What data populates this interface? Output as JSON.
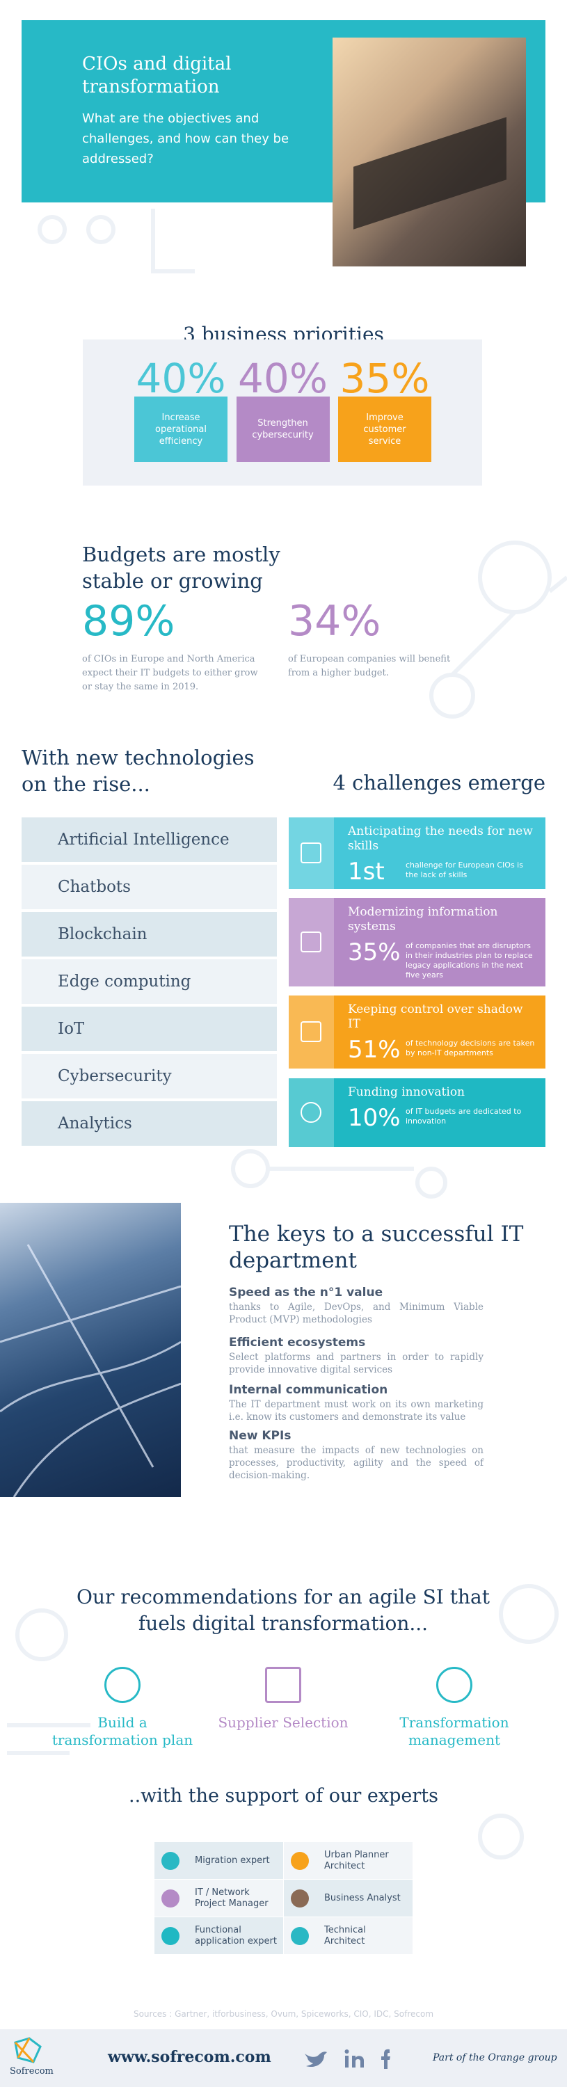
{
  "header": {
    "title": "CIOs and digital transformation",
    "subtitle": "What are the objectives and challenges, and how can they be addressed?"
  },
  "priorities": {
    "title": "3 business priorities",
    "items": [
      {
        "percent": "40%",
        "label": "Increase operational efficiency"
      },
      {
        "percent": "40%",
        "label": "Strengthen cybersecurity"
      },
      {
        "percent": "35%",
        "label": "Improve customer service"
      }
    ]
  },
  "budgets": {
    "title": "Budgets are mostly stable or growing",
    "stats": [
      {
        "percent": "89%",
        "text": "of CIOs in Europe and North America expect their IT budgets to either grow or stay the same in 2019."
      },
      {
        "percent": "34%",
        "text": "of European companies will benefit from a higher budget."
      }
    ]
  },
  "technologies": {
    "title": "With new technologies on the rise...",
    "items": [
      "Artificial Intelligence",
      "Chatbots",
      "Blockchain",
      "Edge computing",
      "IoT",
      "Cybersecurity",
      "Analytics"
    ]
  },
  "challenges": {
    "title": "4 challenges emerge",
    "items": [
      {
        "title": "Anticipating the needs for new skills",
        "figure": "1st",
        "text": "challenge for European CIOs is the lack of skills"
      },
      {
        "title": "Modernizing information systems",
        "figure": "35%",
        "text": "of companies that are disruptors in their industries plan to replace legacy applications in the next five years"
      },
      {
        "title": "Keeping control over shadow IT",
        "figure": "51%",
        "text": "of technology decisions are taken by non-IT departments"
      },
      {
        "title": "Funding innovation",
        "figure": "10%",
        "text": "of IT budgets are dedicated to innovation"
      }
    ]
  },
  "keys": {
    "title": "The keys to a successful IT department",
    "items": [
      {
        "title": "Speed as the n°1 value",
        "text": "thanks to Agile, DevOps, and Minimum Viable Product (MVP) methodologies"
      },
      {
        "title": "Efficient ecosystems",
        "text": "Select platforms and partners in order to rapidly provide innovative digital services"
      },
      {
        "title": "Internal communication",
        "text": "The IT department must work on its own marketing i.e. know its customers and demonstrate its value"
      },
      {
        "title": "New KPIs",
        "text": "that measure the impacts of new technologies on processes, productivity, agility and the speed of decision-making."
      }
    ]
  },
  "recommendations": {
    "title": "Our recommendations for an agile SI that fuels digital transformation...",
    "items": [
      "Build a transformation plan",
      "Supplier Selection",
      "Transformation management"
    ]
  },
  "experts": {
    "title": "..with the support of our experts",
    "items": [
      "Migration expert",
      "Urban Planner Architect",
      "IT / Network Project Manager",
      "Business Analyst",
      "Functional application expert",
      "Technical Architect"
    ]
  },
  "footer": {
    "sources": "Sources : Gartner, itforbusiness, Ovum, Spiceworks, CIO, IDC, Sofrecom",
    "logo": "Sofrecom",
    "url": "www.sofrecom.com",
    "group": "Part of the Orange group"
  }
}
